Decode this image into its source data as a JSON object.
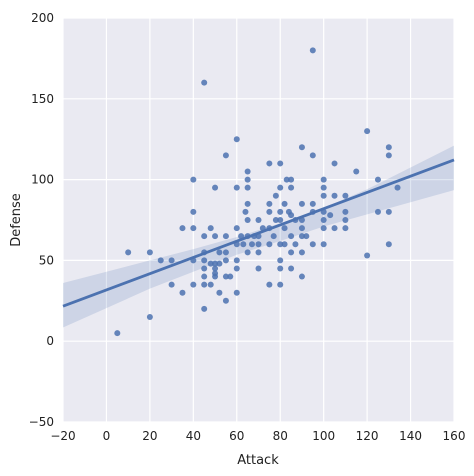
{
  "chart_data": {
    "type": "scatter",
    "xlabel": "Attack",
    "ylabel": "Defense",
    "xlim": [
      -20,
      160
    ],
    "ylim": [
      -50,
      200
    ],
    "xticks": [
      "−20",
      "0",
      "20",
      "40",
      "60",
      "80",
      "100",
      "120",
      "140",
      "160"
    ],
    "yticks": [
      "−50",
      "0",
      "50",
      "100",
      "150",
      "200"
    ],
    "grid": true,
    "colors": {
      "background": "#eaeaf2",
      "grid": "#ffffff",
      "points": "#4c72b0",
      "line": "#4c72b0",
      "band": "#4c72b0"
    },
    "points": [
      [
        5,
        5
      ],
      [
        10,
        55
      ],
      [
        20,
        15
      ],
      [
        20,
        55
      ],
      [
        25,
        50
      ],
      [
        30,
        50
      ],
      [
        30,
        35
      ],
      [
        35,
        30
      ],
      [
        35,
        70
      ],
      [
        40,
        100
      ],
      [
        40,
        80
      ],
      [
        40,
        70
      ],
      [
        40,
        50
      ],
      [
        40,
        35
      ],
      [
        45,
        160
      ],
      [
        45,
        65
      ],
      [
        45,
        55
      ],
      [
        45,
        50
      ],
      [
        45,
        45
      ],
      [
        45,
        40
      ],
      [
        45,
        35
      ],
      [
        45,
        20
      ],
      [
        48,
        70
      ],
      [
        48,
        48
      ],
      [
        48,
        35
      ],
      [
        50,
        95
      ],
      [
        50,
        65
      ],
      [
        50,
        48
      ],
      [
        50,
        45
      ],
      [
        50,
        42
      ],
      [
        50,
        40
      ],
      [
        52,
        55
      ],
      [
        52,
        48
      ],
      [
        52,
        30
      ],
      [
        55,
        115
      ],
      [
        55,
        65
      ],
      [
        55,
        55
      ],
      [
        55,
        50
      ],
      [
        55,
        40
      ],
      [
        55,
        25
      ],
      [
        57,
        40
      ],
      [
        60,
        125
      ],
      [
        60,
        95
      ],
      [
        60,
        70
      ],
      [
        60,
        60
      ],
      [
        60,
        50
      ],
      [
        60,
        45
      ],
      [
        60,
        30
      ],
      [
        62,
        65
      ],
      [
        63,
        60
      ],
      [
        64,
        80
      ],
      [
        65,
        105
      ],
      [
        65,
        100
      ],
      [
        65,
        95
      ],
      [
        65,
        85
      ],
      [
        65,
        75
      ],
      [
        65,
        65
      ],
      [
        65,
        55
      ],
      [
        67,
        60
      ],
      [
        68,
        65
      ],
      [
        70,
        75
      ],
      [
        70,
        65
      ],
      [
        70,
        60
      ],
      [
        70,
        55
      ],
      [
        70,
        45
      ],
      [
        72,
        70
      ],
      [
        75,
        110
      ],
      [
        75,
        85
      ],
      [
        75,
        80
      ],
      [
        75,
        70
      ],
      [
        75,
        60
      ],
      [
        75,
        35
      ],
      [
        77,
        65
      ],
      [
        78,
        90
      ],
      [
        78,
        75
      ],
      [
        80,
        110
      ],
      [
        80,
        95
      ],
      [
        80,
        80
      ],
      [
        80,
        75
      ],
      [
        80,
        60
      ],
      [
        80,
        50
      ],
      [
        80,
        45
      ],
      [
        80,
        35
      ],
      [
        82,
        85
      ],
      [
        82,
        70
      ],
      [
        82,
        60
      ],
      [
        83,
        100
      ],
      [
        84,
        80
      ],
      [
        85,
        100
      ],
      [
        85,
        95
      ],
      [
        85,
        78
      ],
      [
        85,
        65
      ],
      [
        85,
        55
      ],
      [
        85,
        45
      ],
      [
        87,
        75
      ],
      [
        87,
        60
      ],
      [
        90,
        120
      ],
      [
        90,
        85
      ],
      [
        90,
        75
      ],
      [
        90,
        70
      ],
      [
        90,
        65
      ],
      [
        90,
        55
      ],
      [
        90,
        40
      ],
      [
        92,
        65
      ],
      [
        95,
        180
      ],
      [
        95,
        115
      ],
      [
        95,
        85
      ],
      [
        95,
        80
      ],
      [
        95,
        60
      ],
      [
        100,
        100
      ],
      [
        100,
        95
      ],
      [
        100,
        90
      ],
      [
        100,
        80
      ],
      [
        100,
        75
      ],
      [
        100,
        70
      ],
      [
        100,
        60
      ],
      [
        103,
        78
      ],
      [
        105,
        110
      ],
      [
        105,
        90
      ],
      [
        105,
        70
      ],
      [
        110,
        90
      ],
      [
        110,
        80
      ],
      [
        110,
        75
      ],
      [
        110,
        70
      ],
      [
        115,
        105
      ],
      [
        120,
        130
      ],
      [
        120,
        53
      ],
      [
        125,
        100
      ],
      [
        125,
        80
      ],
      [
        130,
        120
      ],
      [
        130,
        115
      ],
      [
        130,
        80
      ],
      [
        130,
        60
      ],
      [
        134,
        95
      ]
    ],
    "regression": {
      "intercept": 31.7,
      "slope": 0.503
    },
    "ci_band": {
      "x": [
        -20,
        0,
        20,
        40,
        60,
        80,
        100,
        120,
        140,
        160
      ],
      "lower": [
        8.5,
        20.5,
        32.5,
        43.0,
        53.5,
        62.0,
        71.0,
        78.5,
        86.0,
        93.5
      ],
      "upper": [
        36.0,
        43.0,
        50.0,
        57.0,
        64.5,
        73.0,
        82.5,
        94.0,
        107.5,
        121.0
      ]
    }
  }
}
